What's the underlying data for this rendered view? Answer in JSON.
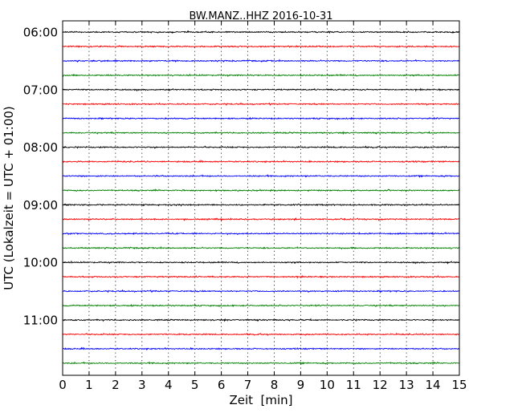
{
  "chart_data": {
    "type": "line",
    "title": "BW.MANZ..HHZ 2016-10-31",
    "xlabel": "Zeit  [min]",
    "ylabel": "UTC (Lokalzeit = UTC + 01:00)",
    "xlim": [
      0,
      15
    ],
    "x_ticks": [
      "0",
      "1",
      "2",
      "3",
      "4",
      "5",
      "6",
      "7",
      "8",
      "9",
      "10",
      "11",
      "12",
      "13",
      "14",
      "15"
    ],
    "y_tick_labels": [
      "06:00",
      "07:00",
      "08:00",
      "09:00",
      "10:00",
      "11:00"
    ],
    "grid": "vertical dotted",
    "trace_interval_min": 15,
    "trace_colors": [
      "#000000",
      "#ff0000",
      "#0000ff",
      "#008000"
    ],
    "traces": [
      {
        "start": "06:00",
        "color": "#000000"
      },
      {
        "start": "06:15",
        "color": "#ff0000"
      },
      {
        "start": "06:30",
        "color": "#0000ff"
      },
      {
        "start": "06:45",
        "color": "#008000"
      },
      {
        "start": "07:00",
        "color": "#000000"
      },
      {
        "start": "07:15",
        "color": "#ff0000"
      },
      {
        "start": "07:30",
        "color": "#0000ff"
      },
      {
        "start": "07:45",
        "color": "#008000"
      },
      {
        "start": "08:00",
        "color": "#000000"
      },
      {
        "start": "08:15",
        "color": "#ff0000"
      },
      {
        "start": "08:30",
        "color": "#0000ff"
      },
      {
        "start": "08:45",
        "color": "#008000"
      },
      {
        "start": "09:00",
        "color": "#000000"
      },
      {
        "start": "09:15",
        "color": "#ff0000"
      },
      {
        "start": "09:30",
        "color": "#0000ff"
      },
      {
        "start": "09:45",
        "color": "#008000"
      },
      {
        "start": "10:00",
        "color": "#000000"
      },
      {
        "start": "10:15",
        "color": "#ff0000"
      },
      {
        "start": "10:30",
        "color": "#0000ff"
      },
      {
        "start": "10:45",
        "color": "#008000"
      },
      {
        "start": "11:00",
        "color": "#000000"
      },
      {
        "start": "11:15",
        "color": "#ff0000"
      },
      {
        "start": "11:30",
        "color": "#0000ff"
      },
      {
        "start": "11:45",
        "color": "#008000"
      }
    ]
  }
}
